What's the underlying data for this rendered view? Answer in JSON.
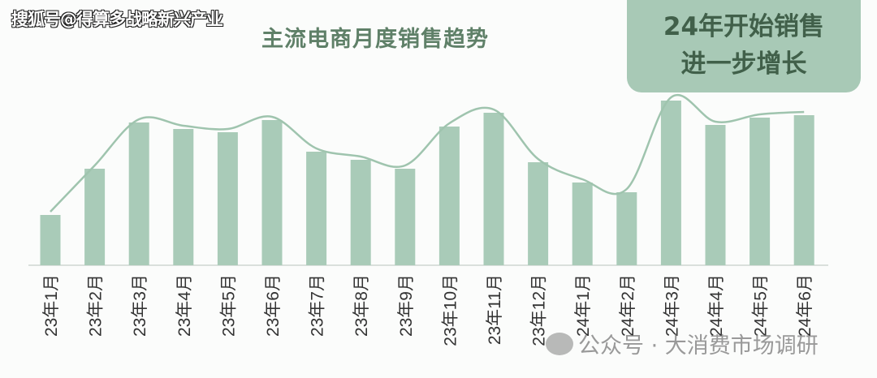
{
  "watermarks": {
    "top_left": "搜狐号@得算多战略新兴产业",
    "bottom": "公众号 · 大消费市场调研",
    "wechat_icon": "wechat-icon"
  },
  "colors": {
    "bar": "#a9cbb8",
    "trend_line": "#9fc4ae",
    "title": "#5f8068",
    "callout_bg": "#a8c9b6",
    "callout_text": "#41604a"
  },
  "chart_data": {
    "type": "bar",
    "title": "主流电商月度销售趋势",
    "annotation": [
      "24年开始销售",
      "进一步增长"
    ],
    "categories": [
      "23年1月",
      "23年2月",
      "23年3月",
      "23年4月",
      "23年5月",
      "23年6月",
      "23年7月",
      "23年8月",
      "23年9月",
      "23年10月",
      "23年11月",
      "23年12月",
      "24年1月",
      "24年2月",
      "24年3月",
      "24年4月",
      "24年5月",
      "24年6月"
    ],
    "values": [
      62,
      119,
      176,
      168,
      164,
      179,
      140,
      130,
      119,
      171,
      188,
      127,
      102,
      90,
      203,
      173,
      182,
      185
    ],
    "trend_line": true,
    "y_axis_shown": false,
    "grid": false,
    "ylim": [
      0,
      210
    ]
  }
}
